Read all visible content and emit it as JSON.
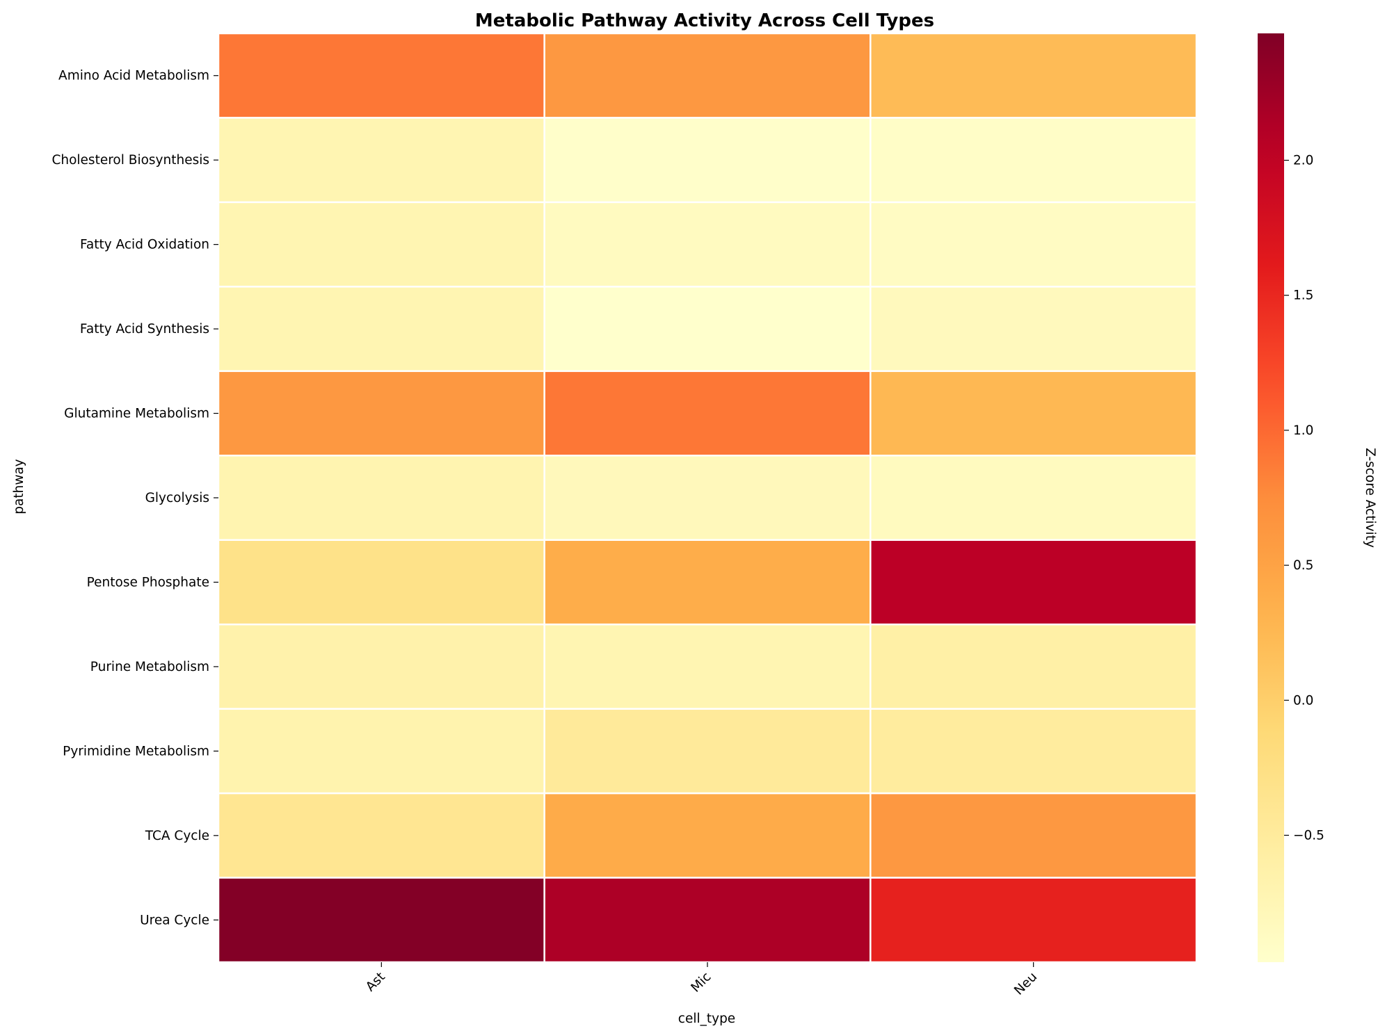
{
  "chart_data": {
    "type": "heatmap",
    "title": "Metabolic Pathway Activity Across Cell Types",
    "xlabel": "cell_type",
    "ylabel": "pathway",
    "x": [
      "Ast",
      "Mic",
      "Neu"
    ],
    "y": [
      "Amino Acid Metabolism",
      "Cholesterol Biosynthesis",
      "Fatty Acid Oxidation",
      "Fatty Acid Synthesis",
      "Glutamine Metabolism",
      "Glycolysis",
      "Pentose Phosphate",
      "Purine Metabolism",
      "Pyrimidine Metabolism",
      "TCA Cycle",
      "Urea Cycle"
    ],
    "values": [
      [
        0.9,
        0.62,
        0.22
      ],
      [
        -0.72,
        -0.95,
        -0.92
      ],
      [
        -0.72,
        -0.85,
        -0.88
      ],
      [
        -0.72,
        -0.97,
        -0.82
      ],
      [
        0.62,
        0.9,
        0.25
      ],
      [
        -0.7,
        -0.8,
        -0.84
      ],
      [
        -0.3,
        0.38,
        2.05
      ],
      [
        -0.65,
        -0.72,
        -0.6
      ],
      [
        -0.68,
        -0.48,
        -0.52
      ],
      [
        -0.4,
        0.4,
        0.62
      ],
      [
        2.45,
        2.15,
        1.55
      ]
    ],
    "colorbar": {
      "label": "Z-score Activity",
      "colormap": "YlOrRd",
      "vmin": -0.97,
      "vmax": 2.47,
      "ticks": [
        -0.5,
        0.0,
        0.5,
        1.0,
        1.5,
        2.0
      ],
      "tick_labels": [
        "−0.5",
        "0.0",
        "0.5",
        "1.0",
        "1.5",
        "2.0"
      ]
    },
    "grid": false,
    "cell_border_color": "#ffffff"
  }
}
